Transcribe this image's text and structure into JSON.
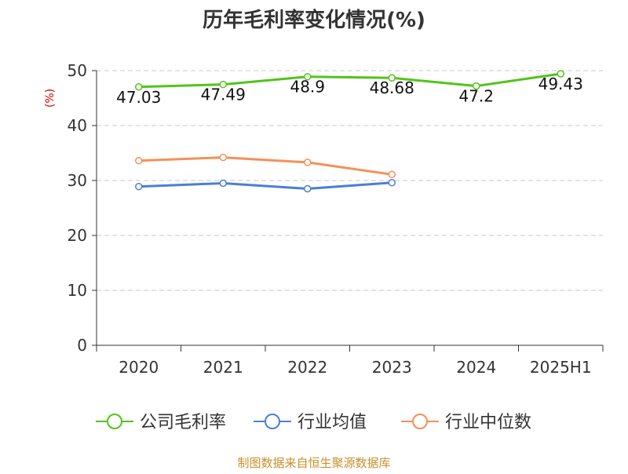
{
  "chart_data": {
    "type": "line",
    "title": "历年毛利率变化情况(%)",
    "ylabel": "(%)",
    "xlabel": "",
    "categories": [
      "2020",
      "2021",
      "2022",
      "2023",
      "2024",
      "2025H1"
    ],
    "ylim": [
      0,
      50
    ],
    "yticks": [
      0,
      10,
      20,
      30,
      40,
      50
    ],
    "grid": true,
    "legend_position": "bottom",
    "series": [
      {
        "name": "公司毛利率",
        "color": "#52c41a",
        "values": [
          47.03,
          47.49,
          48.9,
          48.68,
          47.2,
          49.43
        ],
        "labels": [
          "47.03",
          "47.49",
          "48.9",
          "48.68",
          "47.2",
          "49.43"
        ]
      },
      {
        "name": "行业均值",
        "color": "#4a7fd9",
        "values": [
          28.9,
          29.5,
          28.5,
          29.6,
          null,
          null
        ]
      },
      {
        "name": "行业中位数",
        "color": "#f59059",
        "values": [
          33.6,
          34.2,
          33.3,
          31.1,
          null,
          null
        ]
      }
    ]
  },
  "footer": {
    "source": "制图数据来自恒生聚源数据库"
  }
}
